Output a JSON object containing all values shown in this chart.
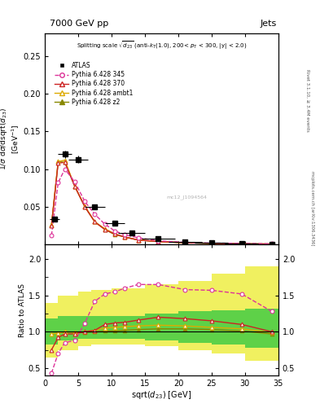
{
  "title_top": "7000 GeV pp",
  "title_right": "Jets",
  "ylabel_main": "1/σ dσ/dsqrt(d_{23}) [GeV^{-1}]",
  "ylabel_ratio": "Ratio to ATLAS",
  "xlabel": "sqrt(d_{23}) [GeV]",
  "rivet_label": "Rivet 3.1.10, ≥ 3.4M events",
  "arxiv_label": "mcplots.cern.ch [arXiv:1306.3436]",
  "watermark": "mc12_J1094564",
  "atlas_x": [
    1.5,
    3.0,
    5.0,
    7.5,
    10.5,
    13.0,
    17.0,
    21.0,
    25.0,
    29.5,
    34.0
  ],
  "atlas_y": [
    0.034,
    0.12,
    0.113,
    0.05,
    0.028,
    0.015,
    0.008,
    0.004,
    0.002,
    0.001,
    0.0005
  ],
  "atlas_yerr": [
    0.003,
    0.005,
    0.005,
    0.003,
    0.002,
    0.001,
    0.001,
    0.0005,
    0.0003,
    0.0002,
    0.0001
  ],
  "atlas_xerr": [
    0.75,
    1.0,
    1.5,
    1.5,
    1.5,
    2.0,
    2.5,
    2.5,
    2.5,
    2.5,
    2.5
  ],
  "p345_x": [
    1.0,
    2.0,
    3.0,
    4.5,
    6.0,
    7.5,
    9.0,
    10.5,
    12.0,
    14.0,
    17.0,
    21.0,
    25.0,
    29.5,
    34.0
  ],
  "p345_y": [
    0.012,
    0.082,
    0.1,
    0.083,
    0.057,
    0.04,
    0.027,
    0.018,
    0.013,
    0.009,
    0.005,
    0.003,
    0.002,
    0.0015,
    0.001
  ],
  "p370_x": [
    1.0,
    2.0,
    3.0,
    4.5,
    6.0,
    7.5,
    9.0,
    10.5,
    12.0,
    14.0,
    17.0,
    21.0,
    25.0,
    29.5,
    34.0
  ],
  "p370_y": [
    0.025,
    0.108,
    0.109,
    0.077,
    0.05,
    0.03,
    0.02,
    0.014,
    0.01,
    0.006,
    0.004,
    0.0025,
    0.0015,
    0.001,
    0.0007
  ],
  "pambt1_x": [
    1.0,
    2.0,
    3.0,
    4.5,
    6.0,
    7.5,
    9.0,
    10.5,
    12.0,
    14.0,
    17.0,
    21.0,
    25.0,
    29.5,
    34.0
  ],
  "pambt1_y": [
    0.026,
    0.11,
    0.112,
    0.077,
    0.051,
    0.03,
    0.021,
    0.014,
    0.01,
    0.006,
    0.004,
    0.0025,
    0.0015,
    0.001,
    0.0007
  ],
  "pz2_x": [
    1.0,
    2.0,
    3.0,
    4.5,
    6.0,
    7.5,
    9.0,
    10.5,
    12.0,
    14.0,
    17.0,
    21.0,
    25.0,
    29.5,
    34.0
  ],
  "pz2_y": [
    0.026,
    0.11,
    0.109,
    0.077,
    0.05,
    0.03,
    0.02,
    0.013,
    0.01,
    0.006,
    0.004,
    0.0025,
    0.0015,
    0.001,
    0.0007
  ],
  "ratio_x": [
    1.0,
    2.0,
    3.0,
    4.5,
    6.0,
    7.5,
    9.0,
    10.5,
    12.0,
    14.0,
    17.0,
    21.0,
    25.0,
    29.5,
    34.0
  ],
  "ratio345_y": [
    0.43,
    0.7,
    0.85,
    0.88,
    1.12,
    1.42,
    1.52,
    1.55,
    1.6,
    1.65,
    1.65,
    1.58,
    1.57,
    1.52,
    1.28
  ],
  "ratio370_y": [
    0.75,
    0.92,
    0.97,
    0.97,
    1.0,
    1.02,
    1.1,
    1.12,
    1.13,
    1.16,
    1.2,
    1.18,
    1.15,
    1.1,
    1.0
  ],
  "ratioambt1_y": [
    0.97,
    0.98,
    1.0,
    0.99,
    1.0,
    1.02,
    1.05,
    1.06,
    1.07,
    1.08,
    1.09,
    1.08,
    1.06,
    1.04,
    0.99
  ],
  "ratioz2_y": [
    0.97,
    0.98,
    1.0,
    0.99,
    0.99,
    1.0,
    1.01,
    1.01,
    1.02,
    1.03,
    1.04,
    1.04,
    1.03,
    1.01,
    0.97
  ],
  "band_edges": [
    0,
    2,
    5,
    7,
    10,
    15,
    20,
    25,
    30,
    35
  ],
  "band_yellow_lo": [
    0.65,
    0.75,
    0.8,
    0.82,
    0.82,
    0.8,
    0.75,
    0.7,
    0.6,
    0.55
  ],
  "band_yellow_hi": [
    1.4,
    1.5,
    1.55,
    1.58,
    1.6,
    1.65,
    1.7,
    1.8,
    1.9,
    2.0
  ],
  "band_green_lo": [
    0.82,
    0.88,
    0.9,
    0.9,
    0.9,
    0.88,
    0.85,
    0.82,
    0.78,
    0.75
  ],
  "band_green_hi": [
    1.18,
    1.22,
    1.22,
    1.22,
    1.22,
    1.25,
    1.28,
    1.3,
    1.32,
    1.35
  ],
  "color_atlas": "#000000",
  "color_p345": "#dd3399",
  "color_p370": "#cc2222",
  "color_pambt1": "#ddaa00",
  "color_pz2": "#888800",
  "xlim": [
    0,
    35
  ],
  "ylim_main": [
    0.0,
    0.28
  ],
  "ylim_ratio": [
    0.4,
    2.2
  ],
  "yticks_main": [
    0.05,
    0.1,
    0.15,
    0.2,
    0.25
  ],
  "yticks_ratio": [
    0.5,
    1.0,
    1.5,
    2.0
  ]
}
